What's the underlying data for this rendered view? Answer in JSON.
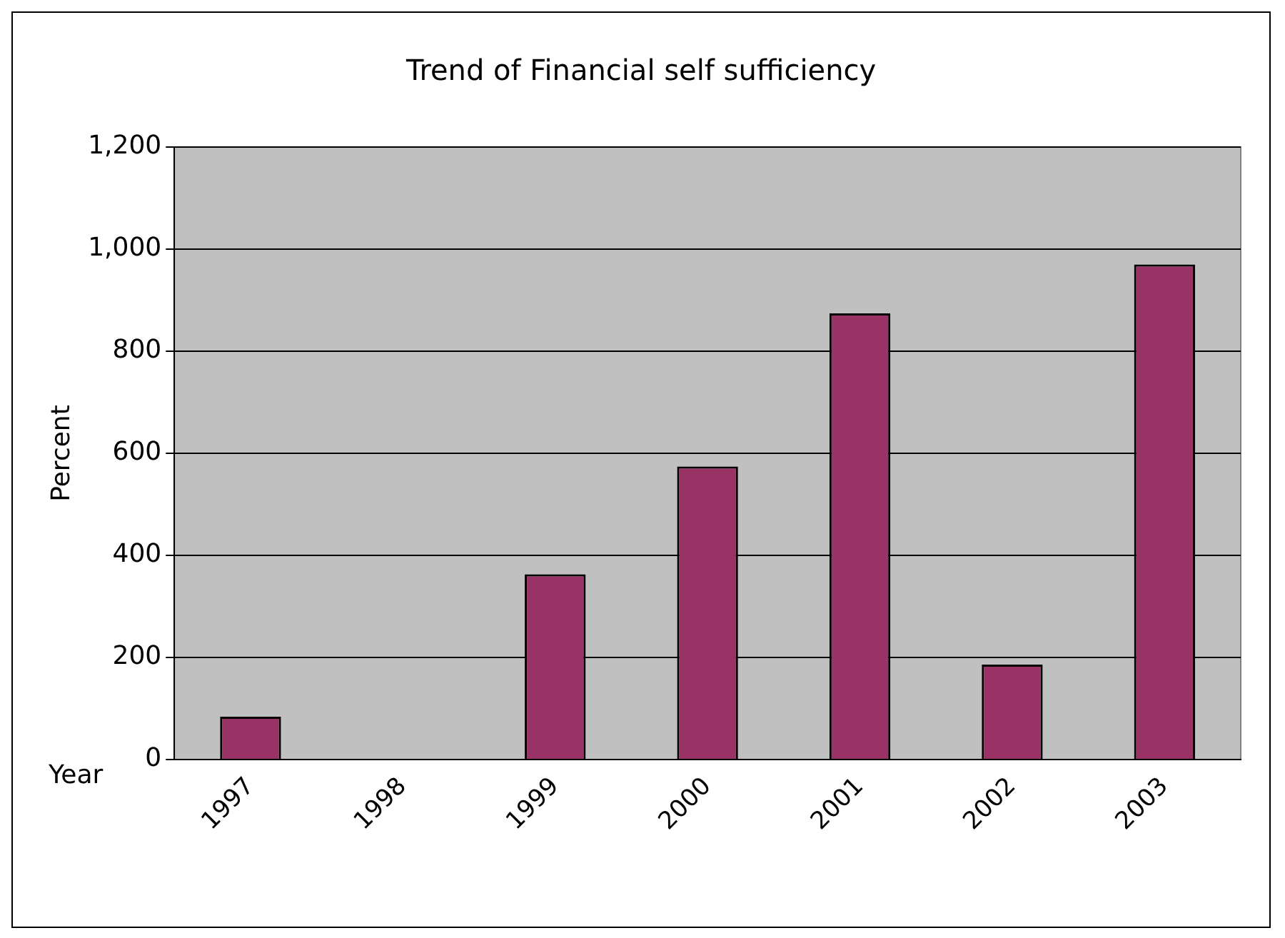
{
  "chart_data": {
    "type": "bar",
    "title": "Trend of Financial self sufficiency",
    "xlabel": "Year",
    "ylabel": "Percent",
    "categories": [
      "1997",
      "1998",
      "1999",
      "2000",
      "2001",
      "2002",
      "2003"
    ],
    "values": [
      84,
      null,
      363,
      574,
      874,
      186,
      970
    ],
    "color": "#993366",
    "ylim": [
      0,
      1200
    ],
    "yticks": [
      0,
      200,
      400,
      600,
      800,
      {
        "value": 1000,
        "label": "1,000"
      },
      {
        "value": 1200,
        "label": "1,200"
      }
    ],
    "grid": "y",
    "legend": false
  }
}
